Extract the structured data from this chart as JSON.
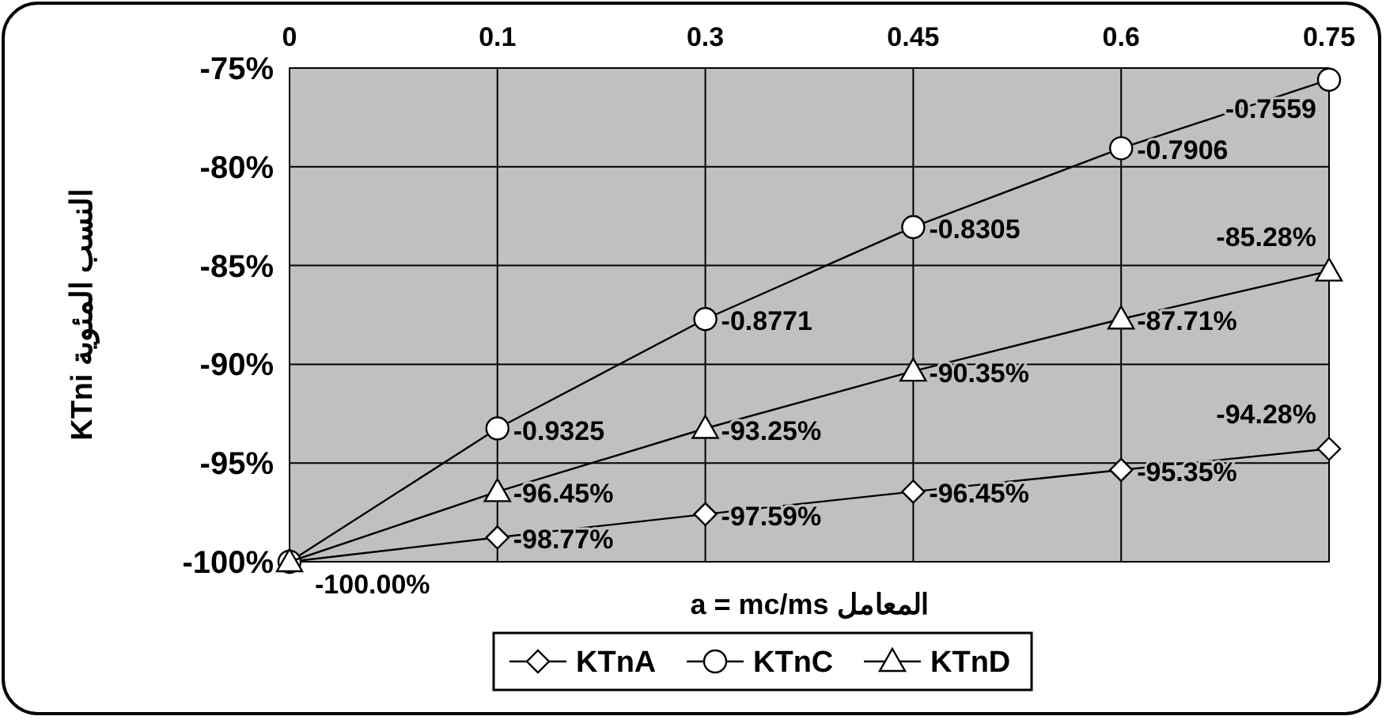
{
  "chart_data": {
    "type": "line",
    "xlabel": "a = mc/ms المعامل",
    "ylabel": "KTni النسب المئوية",
    "categories": [
      "0",
      "0.1",
      "0.3",
      "0.45",
      "0.6",
      "0.75"
    ],
    "series": [
      {
        "name": "KTnA",
        "color": "#000000",
        "marker": "diamond",
        "values": [
          -1,
          -0.9877,
          -0.9759,
          -0.9645,
          -0.9535,
          -0.9428
        ],
        "value_labels": [
          "-100.00%",
          "-98.77%",
          "-97.59%",
          "-96.45%",
          "-95.35%",
          "-94.28%"
        ]
      },
      {
        "name": "KTnC",
        "color": "#000000",
        "marker": "circle",
        "values": [
          -1,
          -0.9325,
          -0.8771,
          -0.8305,
          -0.7906,
          -0.7559
        ],
        "value_labels": [
          null,
          "-0.9325",
          "-0.8771",
          "-0.8305",
          "-0.7906",
          "-0.7559"
        ]
      },
      {
        "name": "KTnD",
        "color": "#000000",
        "marker": "triangle",
        "values": [
          -1,
          -0.9645,
          -0.9325,
          -0.9035,
          -0.8771,
          -0.8528
        ],
        "value_labels": [
          null,
          "-96.45%",
          "-93.25%",
          "-90.35%",
          "-87.71%",
          "-85.28%"
        ]
      }
    ],
    "ylim": [
      -1,
      -0.75
    ],
    "yticks": [
      {
        "value": -1,
        "label": "-100%"
      },
      {
        "value": -0.95,
        "label": "-95%"
      },
      {
        "value": -0.9,
        "label": "-90%"
      },
      {
        "value": -0.85,
        "label": "-85%"
      },
      {
        "value": -0.8,
        "label": "-80%"
      },
      {
        "value": -0.75,
        "label": "-75%"
      }
    ],
    "grid": true,
    "legend": "bottom"
  }
}
